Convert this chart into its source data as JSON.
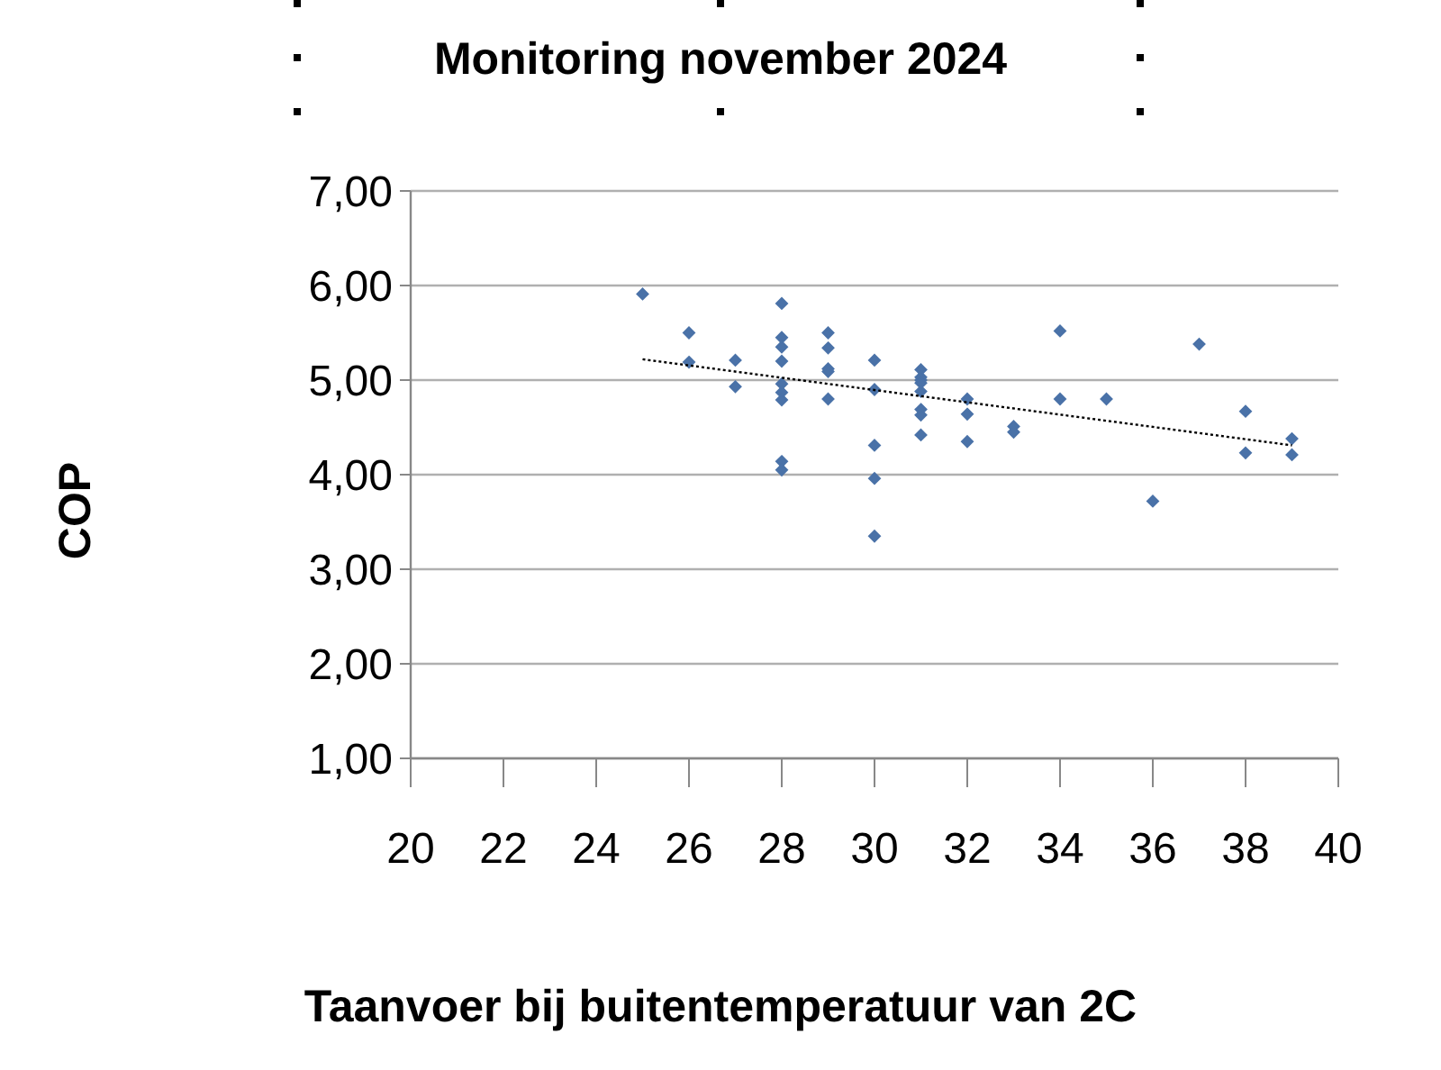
{
  "chart_data": {
    "type": "scatter",
    "title": "Monitoring november 2024",
    "xlabel": "Taanvoer bij buitentemperatuur van 2C",
    "ylabel": "COP",
    "xlim": [
      20,
      40
    ],
    "xticks": [
      20,
      22,
      24,
      26,
      28,
      30,
      32,
      34,
      36,
      38,
      40
    ],
    "ylim": [
      1,
      7
    ],
    "yticks": [
      {
        "value": 1,
        "label": "1,00"
      },
      {
        "value": 2,
        "label": "2,00"
      },
      {
        "value": 3,
        "label": "3,00"
      },
      {
        "value": 4,
        "label": "4,00"
      },
      {
        "value": 5,
        "label": "5,00"
      },
      {
        "value": 6,
        "label": "6,00"
      },
      {
        "value": 7,
        "label": "7,00"
      }
    ],
    "grid": "y",
    "marker": "diamond",
    "series": [
      {
        "color": "#4a72a8",
        "x": [
          25,
          26,
          26,
          27,
          27,
          28,
          28,
          28,
          28,
          28,
          28,
          28,
          28,
          28,
          29,
          29,
          29,
          29,
          29,
          30,
          30,
          30,
          30,
          30,
          31,
          31,
          31,
          31,
          31,
          31,
          31,
          31,
          32,
          32,
          32,
          33,
          33,
          34,
          34,
          35,
          36,
          37,
          38,
          38,
          39,
          39
        ],
        "values": [
          5.91,
          5.5,
          5.19,
          5.21,
          4.93,
          5.81,
          5.45,
          5.35,
          5.2,
          4.96,
          4.87,
          4.79,
          4.14,
          4.05,
          5.5,
          5.34,
          5.12,
          5.09,
          4.8,
          5.21,
          4.9,
          4.31,
          3.96,
          3.35,
          5.11,
          5.03,
          5,
          4.97,
          4.88,
          4.69,
          4.63,
          4.42,
          4.8,
          4.64,
          4.35,
          4.51,
          4.45,
          5.52,
          4.8,
          4.8,
          3.72,
          5.38,
          4.67,
          4.23,
          4.38,
          4.21
        ]
      },
      {
        "type": "line",
        "color": "#000000",
        "line_style": "dotted",
        "marker": "none",
        "x": [
          25,
          39
        ],
        "values": [
          5.22,
          4.31
        ]
      }
    ]
  }
}
